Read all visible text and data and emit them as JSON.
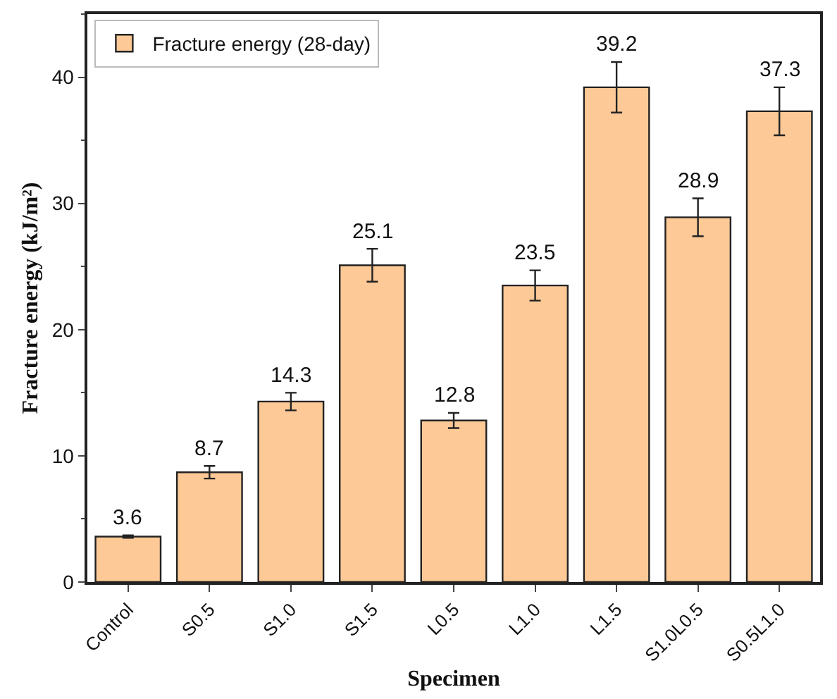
{
  "chart_data": {
    "type": "bar",
    "xlabel": "Specimen",
    "ylabel": "Fracture energy (kJ/m²)",
    "categories": [
      "Control",
      "S0.5",
      "S1.0",
      "S1.5",
      "L0.5",
      "L1.0",
      "L1.5",
      "S1.0L0.5",
      "S0.5L1.0"
    ],
    "series": [
      {
        "name": "Fracture energy (28-day)",
        "color": "#fdc997",
        "values": [
          3.6,
          8.7,
          14.3,
          25.1,
          12.8,
          23.5,
          39.2,
          28.9,
          37.3
        ],
        "errors": [
          0.1,
          0.5,
          0.7,
          1.3,
          0.6,
          1.2,
          2.0,
          1.5,
          1.9
        ]
      }
    ],
    "ylim": [
      0,
      45
    ],
    "yticks": [
      0,
      10,
      20,
      30,
      40
    ],
    "data_labels": true,
    "legend": "top left"
  }
}
